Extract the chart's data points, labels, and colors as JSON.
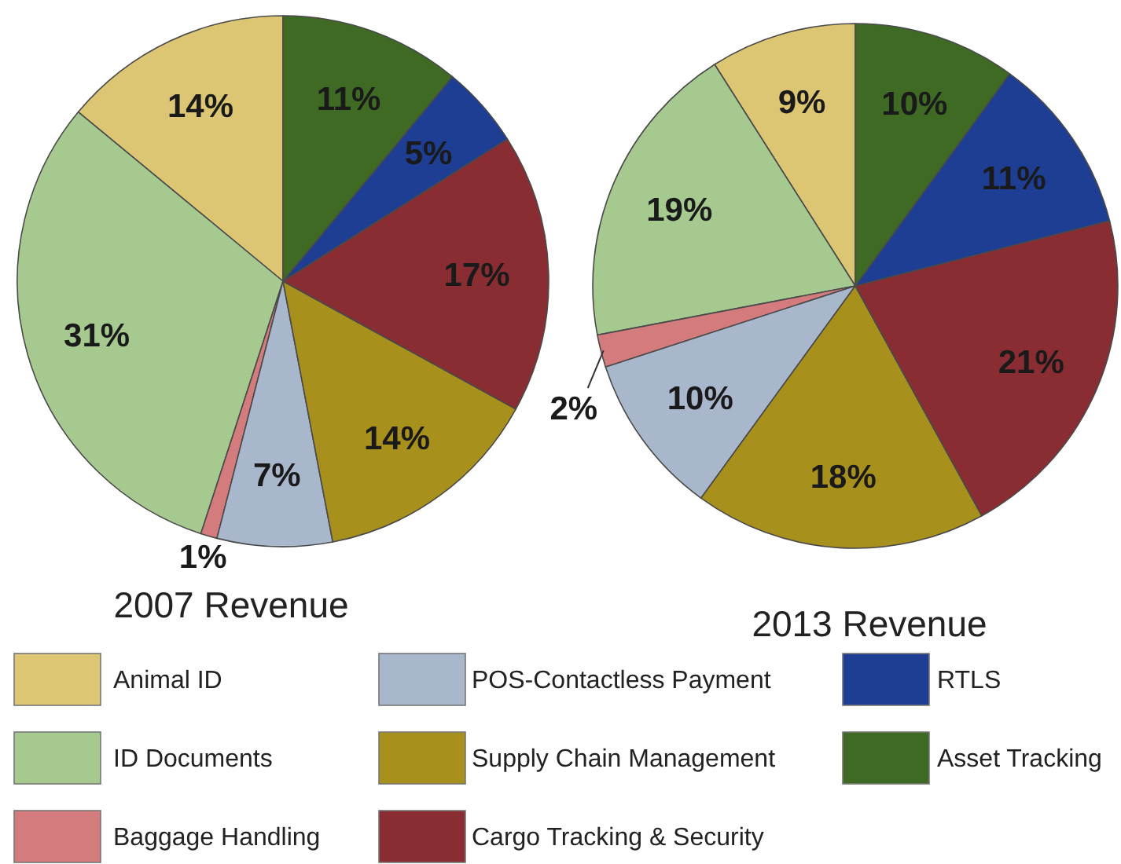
{
  "chart_data": {
    "type": "pie",
    "categories": [
      "Animal ID",
      "ID Documents",
      "Baggage Handling",
      "POS-Contactless Payment",
      "Supply Chain Management",
      "Cargo Tracking & Security",
      "RTLS",
      "Asset Tracking"
    ],
    "colors": [
      "#dcc673",
      "#a6c98f",
      "#d47b7d",
      "#a9b7cd",
      "#a8901c",
      "#8a2d33",
      "#1d3e93",
      "#3e6a24"
    ],
    "legend": "bottom",
    "series": [
      {
        "name": "2007 Revenue",
        "values": [
          14,
          31,
          1,
          7,
          14,
          17,
          5,
          11
        ],
        "value_labels": [
          "14%",
          "31%",
          "1%",
          "7%",
          "14%",
          "17%",
          "5%",
          "11%"
        ]
      },
      {
        "name": "2013 Revenue",
        "values": [
          9,
          19,
          2,
          10,
          18,
          21,
          11,
          10
        ],
        "value_labels": [
          "9%",
          "19%",
          "2%",
          "10%",
          "18%",
          "21%",
          "11%",
          "10%"
        ]
      }
    ]
  }
}
